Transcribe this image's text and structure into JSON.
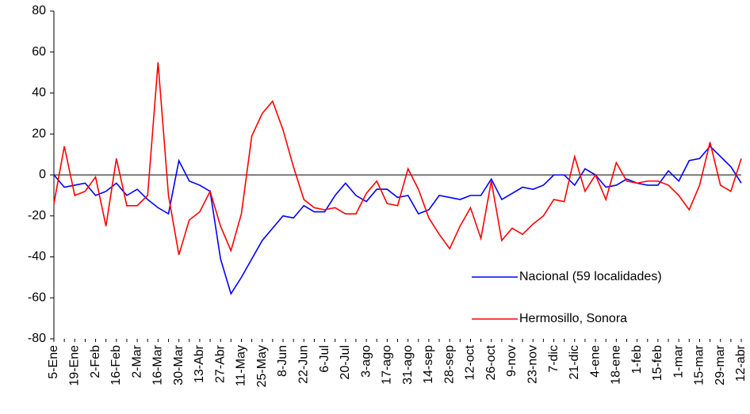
{
  "chart_data": {
    "type": "line",
    "categories": [
      "5-Ene",
      null,
      "19-Ene",
      null,
      "2-Feb",
      null,
      "16-Feb",
      null,
      "2-Mar",
      null,
      "16-Mar",
      null,
      "30-Mar",
      null,
      "13-Abr",
      null,
      "27-Abr",
      null,
      "11-May",
      null,
      "25-May",
      null,
      "8-Jun",
      null,
      "22-Jun",
      null,
      "6-Jul",
      null,
      "20-Jul",
      null,
      "3-ago",
      null,
      "17-ago",
      null,
      "31-ago",
      null,
      "14-sep",
      null,
      "28-sep",
      null,
      "12-oct",
      null,
      "26-oct",
      null,
      "9-nov",
      null,
      "23-nov",
      null,
      "7-dic",
      null,
      "21-dic",
      null,
      "4-ene",
      null,
      "18-ene",
      null,
      "1-feb",
      null,
      "15-feb",
      null,
      "1-mar",
      null,
      "15-mar",
      null,
      "29-mar",
      null,
      "12-abr"
    ],
    "series": [
      {
        "name": "Nacional (59 localidades)",
        "color": "#0000ff",
        "values": [
          0,
          -6,
          -5,
          -4,
          -10,
          -8,
          -4,
          -10,
          -7,
          -12,
          -16,
          -19,
          7,
          -3,
          -5,
          -8,
          -41,
          -58,
          -50,
          -41,
          -32,
          -26,
          -20,
          -21,
          -15,
          -18,
          -18,
          -10,
          -4,
          -10,
          -13,
          -7,
          -7,
          -11,
          -10,
          -19,
          -17,
          -10,
          -11,
          -12,
          -10,
          -10,
          -2,
          -12,
          -9,
          -6,
          -7,
          -5,
          0,
          0,
          -5,
          3,
          0,
          -6,
          -5,
          -2,
          -4,
          -5,
          -5,
          2,
          -3,
          7,
          8,
          14,
          9,
          4,
          -4
        ]
      },
      {
        "name": "Hermosillo, Sonora",
        "color": "#ff0000",
        "values": [
          -14,
          14,
          -10,
          -8,
          -1,
          -25,
          8,
          -15,
          -15,
          -10,
          55,
          -10,
          -39,
          -22,
          -18,
          -8,
          -25,
          -37,
          -19,
          19,
          30,
          36,
          22,
          4,
          -12,
          -16,
          -17,
          -16,
          -19,
          -19,
          -9,
          -3,
          -14,
          -15,
          3,
          -7,
          -21,
          -29,
          -36,
          -25,
          -16,
          -31,
          -3,
          -32,
          -26,
          -29,
          -24,
          -20,
          -12,
          -13,
          9,
          -8,
          0,
          -12,
          6,
          -3,
          -4,
          -3,
          -3,
          -5,
          -10,
          -17,
          -5,
          16,
          -5,
          -8,
          8
        ]
      }
    ],
    "ylim": [
      -80,
      80
    ],
    "yticks": [
      -80,
      -60,
      -40,
      -20,
      0,
      20,
      40,
      60,
      80
    ],
    "grid": false,
    "legend": "lower right"
  }
}
